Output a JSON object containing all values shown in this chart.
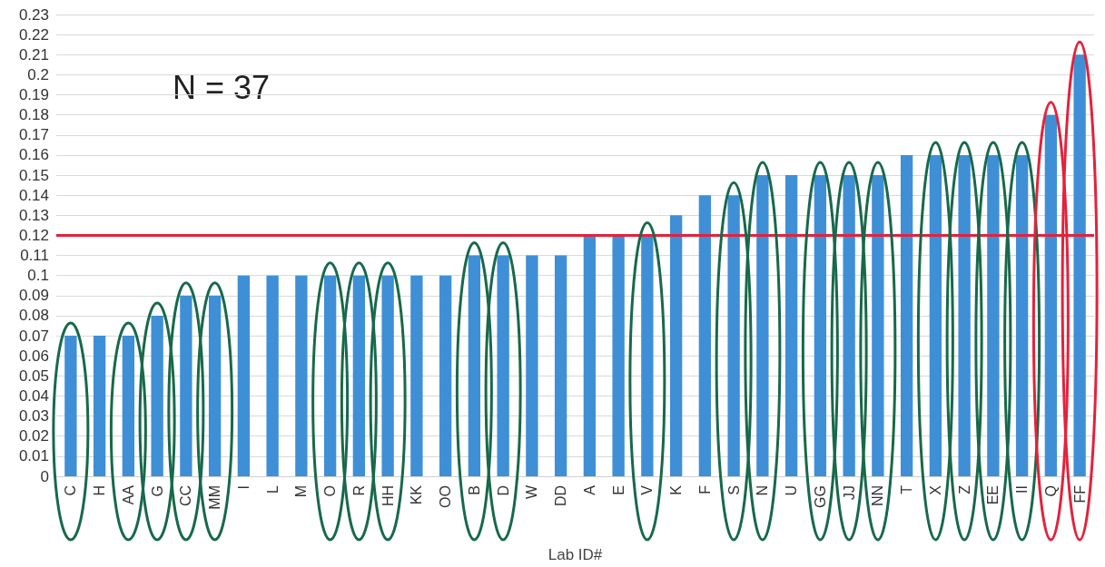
{
  "chart_data": {
    "type": "bar",
    "xlabel": "Lab ID#",
    "annotations": [
      "N = 37"
    ],
    "categories": [
      "C",
      "H",
      "AA",
      "G",
      "CC",
      "MM",
      "I",
      "L",
      "M",
      "O",
      "R",
      "HH",
      "KK",
      "OO",
      "B",
      "D",
      "W",
      "DD",
      "A",
      "E",
      "V",
      "K",
      "F",
      "S",
      "N",
      "U",
      "GG",
      "JJ",
      "NN",
      "T",
      "X",
      "Z",
      "EE",
      "II",
      "Q",
      "FF"
    ],
    "values": [
      0.07,
      0.07,
      0.07,
      0.08,
      0.09,
      0.09,
      0.1,
      0.1,
      0.1,
      0.1,
      0.1,
      0.1,
      0.1,
      0.1,
      0.11,
      0.11,
      0.11,
      0.11,
      0.12,
      0.12,
      0.12,
      0.13,
      0.14,
      0.14,
      0.15,
      0.15,
      0.15,
      0.15,
      0.15,
      0.16,
      0.16,
      0.16,
      0.16,
      0.16,
      0.18,
      0.21
    ],
    "color": "#3f8fd6",
    "ylim": [
      0,
      0.23
    ],
    "yticks": [
      0,
      0.01,
      0.02,
      0.03,
      0.04,
      0.05,
      0.06,
      0.07,
      0.08,
      0.09,
      0.1,
      0.11,
      0.12,
      0.13,
      0.14,
      0.15,
      0.16,
      0.17,
      0.18,
      0.19,
      0.2,
      0.21,
      0.22,
      0.23
    ],
    "grid": "y",
    "ref_lines": [
      {
        "axis": "y",
        "value": 0.12,
        "color": "#e3223c"
      }
    ]
  }
}
